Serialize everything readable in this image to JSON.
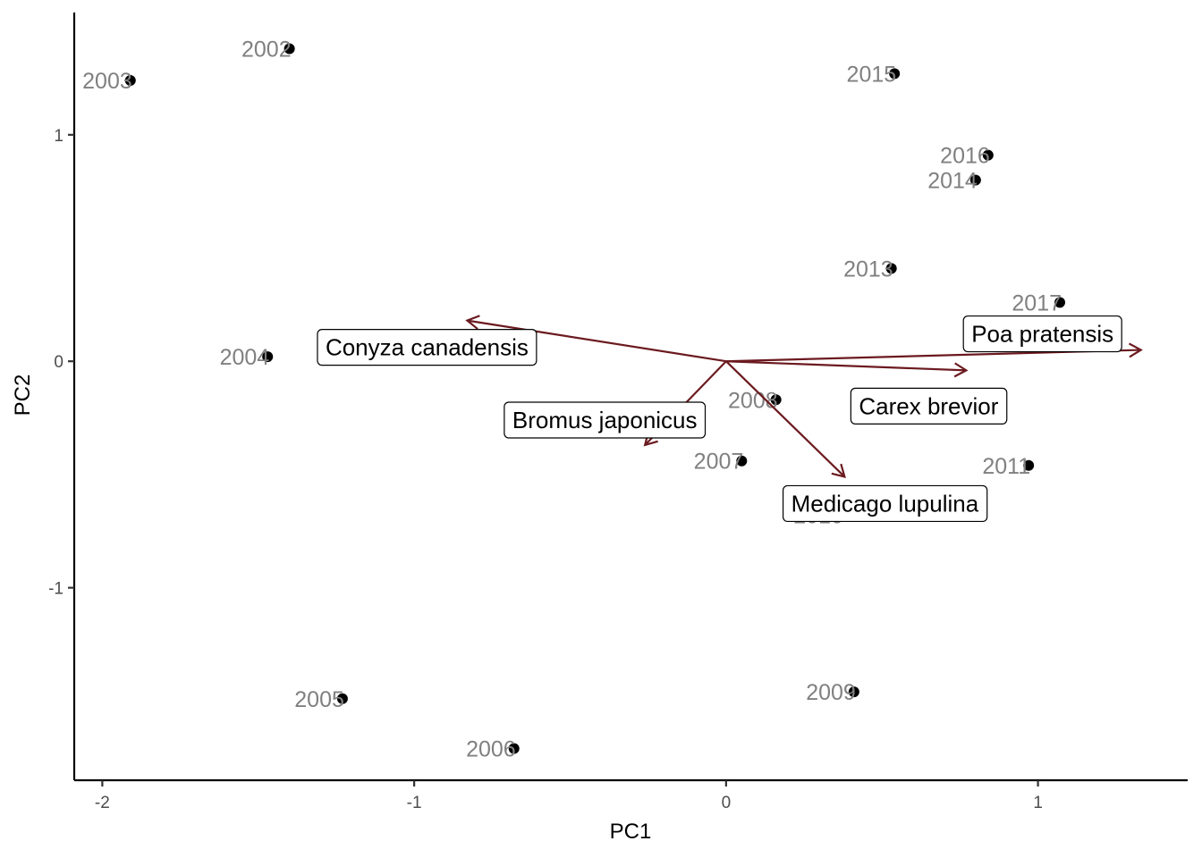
{
  "chart_data": {
    "type": "scatter",
    "title": "",
    "xlabel": "PC1",
    "ylabel": "PC2",
    "xlim": [
      -2.09,
      1.48
    ],
    "ylim": [
      -1.85,
      1.54
    ],
    "x_ticks": [
      -2,
      -1,
      0,
      1
    ],
    "x_tick_labels": [
      "-2",
      "-1",
      "0",
      "1"
    ],
    "y_ticks": [
      -1,
      0,
      1
    ],
    "y_tick_labels": [
      "-1",
      "0",
      "1"
    ],
    "grid": false,
    "points": [
      {
        "label": "2002",
        "x": -1.4,
        "y": 1.38
      },
      {
        "label": "2003",
        "x": -1.91,
        "y": 1.24
      },
      {
        "label": "2004",
        "x": -1.47,
        "y": 0.02
      },
      {
        "label": "2005",
        "x": -1.23,
        "y": -1.49
      },
      {
        "label": "2006",
        "x": -0.68,
        "y": -1.71
      },
      {
        "label": "2007",
        "x": 0.05,
        "y": -0.44
      },
      {
        "label": "2008",
        "x": 0.16,
        "y": -0.17
      },
      {
        "label": "2009",
        "x": 0.41,
        "y": -1.46
      },
      {
        "label": "2010",
        "x": 0.37,
        "y": -0.68
      },
      {
        "label": "2011",
        "x": 0.97,
        "y": -0.46
      },
      {
        "label": "2013",
        "x": 0.53,
        "y": 0.41
      },
      {
        "label": "2014",
        "x": 0.8,
        "y": 0.8
      },
      {
        "label": "2015",
        "x": 0.54,
        "y": 1.27
      },
      {
        "label": "2016",
        "x": 0.84,
        "y": 0.91
      },
      {
        "label": "2017",
        "x": 1.07,
        "y": 0.26
      }
    ],
    "loadings": [
      {
        "label": "Poa pratensis",
        "x": 1.33,
        "y": 0.05
      },
      {
        "label": "Carex brevior",
        "x": 0.77,
        "y": -0.04
      },
      {
        "label": "Conyza canadensis",
        "x": -0.83,
        "y": 0.18
      },
      {
        "label": "Bromus japonicus",
        "x": -0.26,
        "y": -0.37
      },
      {
        "label": "Medicago lupulina",
        "x": 0.38,
        "y": -0.51
      }
    ],
    "colors": {
      "points": "#000000",
      "point_labels": "#808080",
      "arrows": "#6b1a1f"
    }
  }
}
